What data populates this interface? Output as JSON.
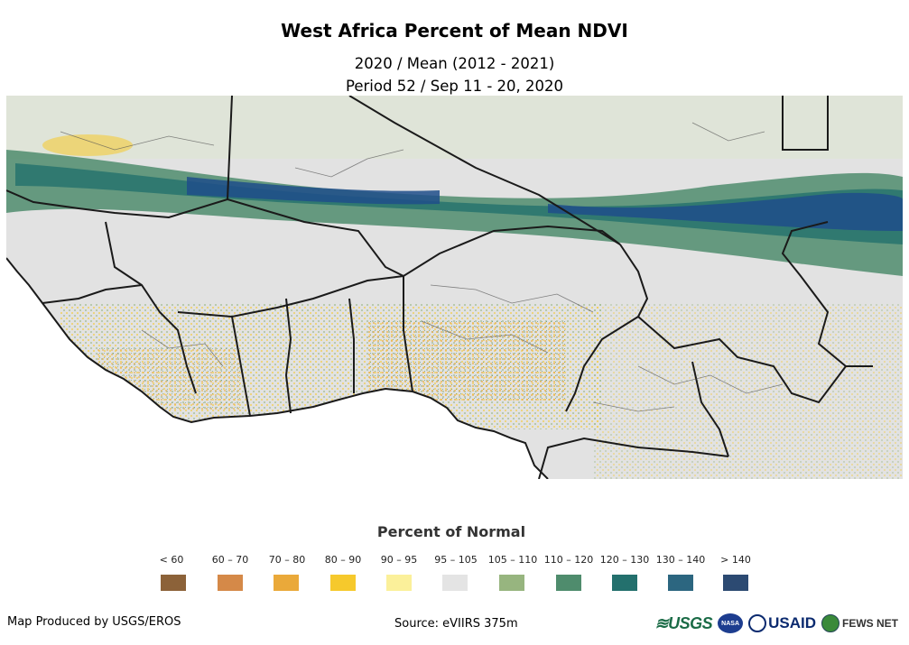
{
  "title": "West Africa Percent of Mean NDVI",
  "subtitle_line1": "2020 / Mean (2012 - 2021)",
  "subtitle_line2": "Period 52 / Sep 11 - 20, 2020",
  "legend": {
    "title": "Percent of Normal",
    "classes": [
      {
        "label": "< 60",
        "color": "#8c6239"
      },
      {
        "label": "60 – 70",
        "color": "#d58948"
      },
      {
        "label": "70 – 80",
        "color": "#eaa93a"
      },
      {
        "label": "80 – 90",
        "color": "#f6c92c"
      },
      {
        "label": "90 – 95",
        "color": "#fbf09a"
      },
      {
        "label": "95 – 105",
        "color": "#e4e4e4"
      },
      {
        "label": "105 – 110",
        "color": "#97b57f"
      },
      {
        "label": "110 – 120",
        "color": "#4f8c6d"
      },
      {
        "label": "120 – 130",
        "color": "#23706d"
      },
      {
        "label": "130 – 140",
        "color": "#2c6680"
      },
      {
        "label": "> 140",
        "color": "#2c4a72"
      }
    ]
  },
  "footer": {
    "produced_by": "Map Produced by USGS/EROS",
    "source": "Source: eVIIRS 375m"
  },
  "logos": {
    "usgs": "≋USGS",
    "nasa": "NASA",
    "usaid": "USAID",
    "fews": "FEWS NET"
  },
  "map": {
    "region": "West Africa",
    "ocean_color": "#ffffff",
    "land_base_color": "#e2e2e2",
    "border_color": "#1a1a1a"
  }
}
